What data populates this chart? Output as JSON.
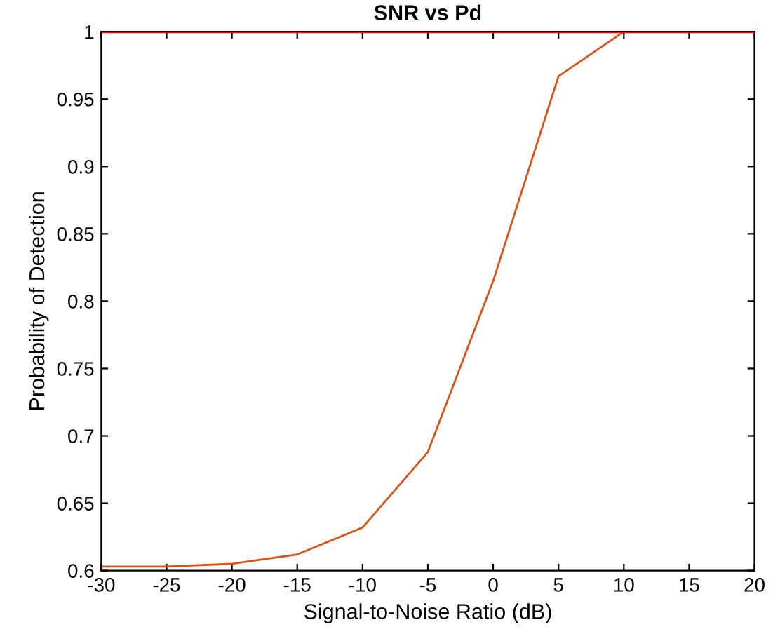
{
  "chart_data": {
    "type": "line",
    "title": "SNR vs Pd",
    "xlabel": "Signal-to-Noise Ratio (dB)",
    "ylabel": "Probability of Detection",
    "x": [
      -30,
      -25,
      -20,
      -15,
      -10,
      -5,
      0,
      5,
      10
    ],
    "series": [
      {
        "color": "#d95319",
        "values": [
          0.603,
          0.603,
          0.605,
          0.612,
          0.632,
          0.688,
          0.815,
          0.967,
          1.0
        ]
      }
    ],
    "ref_lines": [
      {
        "axis": "y",
        "value": 1,
        "color": "#ff0000"
      }
    ],
    "xlim": [
      -30,
      20
    ],
    "ylim": [
      0.6,
      1
    ],
    "xticks": [
      -30,
      -25,
      -20,
      -15,
      -10,
      -5,
      0,
      5,
      10,
      15,
      20
    ],
    "yticks": [
      0.6,
      0.65,
      0.7,
      0.75,
      0.8,
      0.85,
      0.9,
      0.95,
      1
    ],
    "grid": false
  }
}
